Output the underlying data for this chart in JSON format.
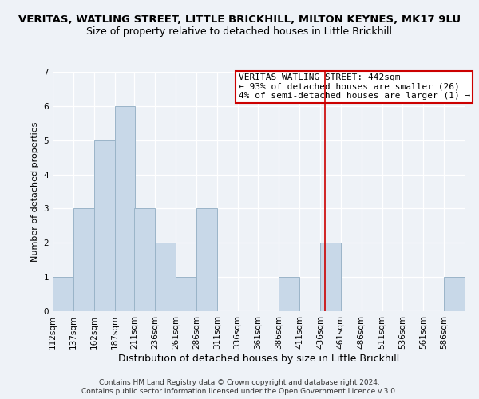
{
  "title1": "VERITAS, WATLING STREET, LITTLE BRICKHILL, MILTON KEYNES, MK17 9LU",
  "title2": "Size of property relative to detached houses in Little Brickhill",
  "xlabel": "Distribution of detached houses by size in Little Brickhill",
  "ylabel": "Number of detached properties",
  "footer1": "Contains HM Land Registry data © Crown copyright and database right 2024.",
  "footer2": "Contains public sector information licensed under the Open Government Licence v.3.0.",
  "bar_edges": [
    112,
    137,
    162,
    187,
    211,
    236,
    261,
    286,
    311,
    336,
    361,
    386,
    411,
    436,
    461,
    486,
    511,
    536,
    561,
    586,
    611
  ],
  "bar_heights": [
    1,
    3,
    5,
    6,
    3,
    2,
    1,
    3,
    0,
    0,
    0,
    1,
    0,
    2,
    0,
    0,
    0,
    0,
    0,
    1
  ],
  "bar_color": "#c8d8e8",
  "bar_edgecolor": "#9ab4c8",
  "vline_x": 442,
  "vline_color": "#cc0000",
  "annotation_text": "VERITAS WATLING STREET: 442sqm\n← 93% of detached houses are smaller (26)\n4% of semi-detached houses are larger (1) →",
  "annotation_box_edgecolor": "#cc0000",
  "annotation_box_facecolor": "#ffffff",
  "ylim": [
    0,
    7
  ],
  "yticks": [
    0,
    1,
    2,
    3,
    4,
    5,
    6,
    7
  ],
  "background_color": "#eef2f7",
  "grid_color": "#ffffff",
  "title1_fontsize": 9.5,
  "title2_fontsize": 9,
  "xlabel_fontsize": 9,
  "ylabel_fontsize": 8,
  "tick_fontsize": 7.5,
  "annotation_fontsize": 8,
  "footer_fontsize": 6.5
}
